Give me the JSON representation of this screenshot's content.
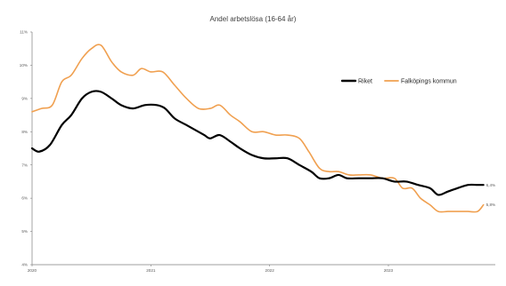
{
  "chart_data": {
    "type": "line",
    "title": "Andel arbetslösa (16-64 år)",
    "xlabel": "",
    "ylabel": "",
    "ylim": [
      4,
      11
    ],
    "xlim": [
      2020.0,
      2023.9
    ],
    "y_ticks": [
      "4%",
      "5%",
      "6%",
      "7%",
      "8%",
      "9%",
      "10%",
      "11%"
    ],
    "x_ticks": [
      "2020",
      "2021",
      "2022",
      "2023"
    ],
    "grid": false,
    "legend_position": "right",
    "series": [
      {
        "name": "Riket",
        "color": "#000000",
        "end_label": "6,4%",
        "points": [
          [
            2020.0,
            7.5
          ],
          [
            2020.06,
            7.4
          ],
          [
            2020.15,
            7.6
          ],
          [
            2020.25,
            8.2
          ],
          [
            2020.33,
            8.5
          ],
          [
            2020.42,
            9.0
          ],
          [
            2020.5,
            9.2
          ],
          [
            2020.58,
            9.2
          ],
          [
            2020.67,
            9.0
          ],
          [
            2020.75,
            8.8
          ],
          [
            2020.85,
            8.7
          ],
          [
            2020.95,
            8.8
          ],
          [
            2021.05,
            8.8
          ],
          [
            2021.12,
            8.7
          ],
          [
            2021.2,
            8.4
          ],
          [
            2021.3,
            8.2
          ],
          [
            2021.4,
            8.0
          ],
          [
            2021.45,
            7.9
          ],
          [
            2021.5,
            7.8
          ],
          [
            2021.58,
            7.9
          ],
          [
            2021.67,
            7.7
          ],
          [
            2021.75,
            7.5
          ],
          [
            2021.85,
            7.3
          ],
          [
            2021.95,
            7.2
          ],
          [
            2022.05,
            7.2
          ],
          [
            2022.15,
            7.2
          ],
          [
            2022.25,
            7.0
          ],
          [
            2022.35,
            6.8
          ],
          [
            2022.42,
            6.6
          ],
          [
            2022.5,
            6.6
          ],
          [
            2022.58,
            6.7
          ],
          [
            2022.65,
            6.6
          ],
          [
            2022.75,
            6.6
          ],
          [
            2022.85,
            6.6
          ],
          [
            2022.95,
            6.6
          ],
          [
            2023.05,
            6.5
          ],
          [
            2023.15,
            6.5
          ],
          [
            2023.25,
            6.4
          ],
          [
            2023.35,
            6.3
          ],
          [
            2023.42,
            6.1
          ],
          [
            2023.5,
            6.2
          ],
          [
            2023.58,
            6.3
          ],
          [
            2023.67,
            6.4
          ],
          [
            2023.75,
            6.4
          ],
          [
            2023.8,
            6.4
          ]
        ]
      },
      {
        "name": "Falköpings kommun",
        "color": "#f0a050",
        "end_label": "5,8%",
        "points": [
          [
            2020.0,
            8.6
          ],
          [
            2020.08,
            8.7
          ],
          [
            2020.17,
            8.8
          ],
          [
            2020.25,
            9.5
          ],
          [
            2020.33,
            9.7
          ],
          [
            2020.42,
            10.2
          ],
          [
            2020.5,
            10.5
          ],
          [
            2020.58,
            10.6
          ],
          [
            2020.67,
            10.1
          ],
          [
            2020.75,
            9.8
          ],
          [
            2020.85,
            9.7
          ],
          [
            2020.92,
            9.9
          ],
          [
            2021.0,
            9.8
          ],
          [
            2021.1,
            9.8
          ],
          [
            2021.2,
            9.4
          ],
          [
            2021.3,
            9.0
          ],
          [
            2021.4,
            8.7
          ],
          [
            2021.5,
            8.7
          ],
          [
            2021.58,
            8.8
          ],
          [
            2021.67,
            8.5
          ],
          [
            2021.75,
            8.3
          ],
          [
            2021.85,
            8.0
          ],
          [
            2021.95,
            8.0
          ],
          [
            2022.05,
            7.9
          ],
          [
            2022.15,
            7.9
          ],
          [
            2022.25,
            7.8
          ],
          [
            2022.33,
            7.4
          ],
          [
            2022.42,
            6.9
          ],
          [
            2022.5,
            6.8
          ],
          [
            2022.58,
            6.8
          ],
          [
            2022.67,
            6.7
          ],
          [
            2022.75,
            6.7
          ],
          [
            2022.85,
            6.7
          ],
          [
            2022.95,
            6.6
          ],
          [
            2023.05,
            6.6
          ],
          [
            2023.12,
            6.3
          ],
          [
            2023.2,
            6.3
          ],
          [
            2023.27,
            6.0
          ],
          [
            2023.35,
            5.8
          ],
          [
            2023.42,
            5.6
          ],
          [
            2023.5,
            5.6
          ],
          [
            2023.58,
            5.6
          ],
          [
            2023.67,
            5.6
          ],
          [
            2023.75,
            5.6
          ],
          [
            2023.8,
            5.8
          ]
        ]
      }
    ]
  }
}
